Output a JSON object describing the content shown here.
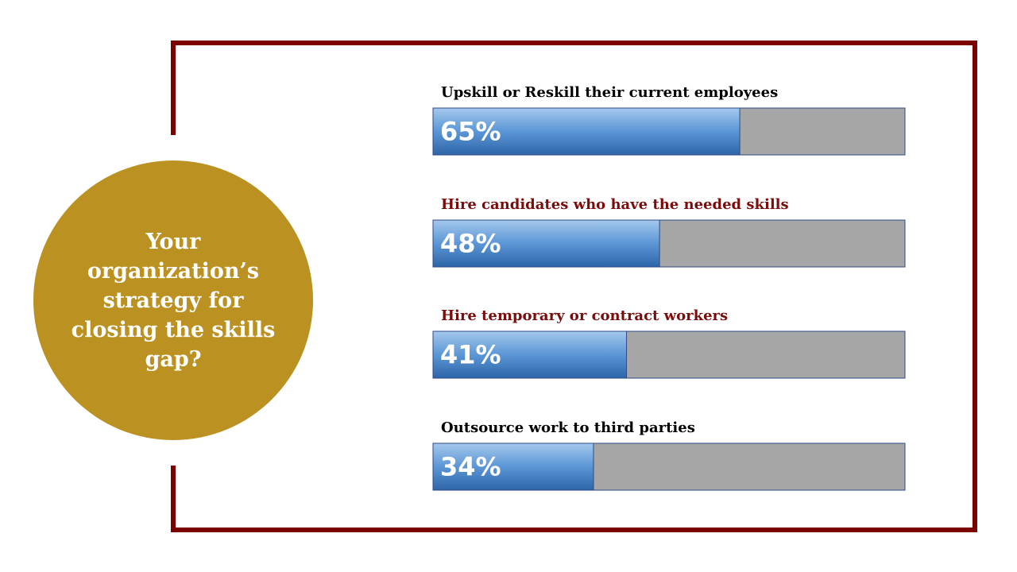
{
  "chart_data": {
    "type": "progress-bar",
    "title": "Your organization’s strategy for closing the skills gap?",
    "categories": [
      "Upskill or Reskill their current employees",
      "Hire candidates who have the needed skills",
      "Hire temporary or contract workers",
      "Outsource work to third parties"
    ],
    "category_colors": [
      "#000000",
      "#7b0c0c",
      "#7b0c0c",
      "#000000"
    ],
    "values": [
      65,
      48,
      41,
      34
    ],
    "value_labels": [
      "65%",
      "48%",
      "41%",
      "34%"
    ],
    "xlim": [
      0,
      100
    ],
    "color": "#3a7cc4",
    "track_color": "#a6a6a6"
  }
}
